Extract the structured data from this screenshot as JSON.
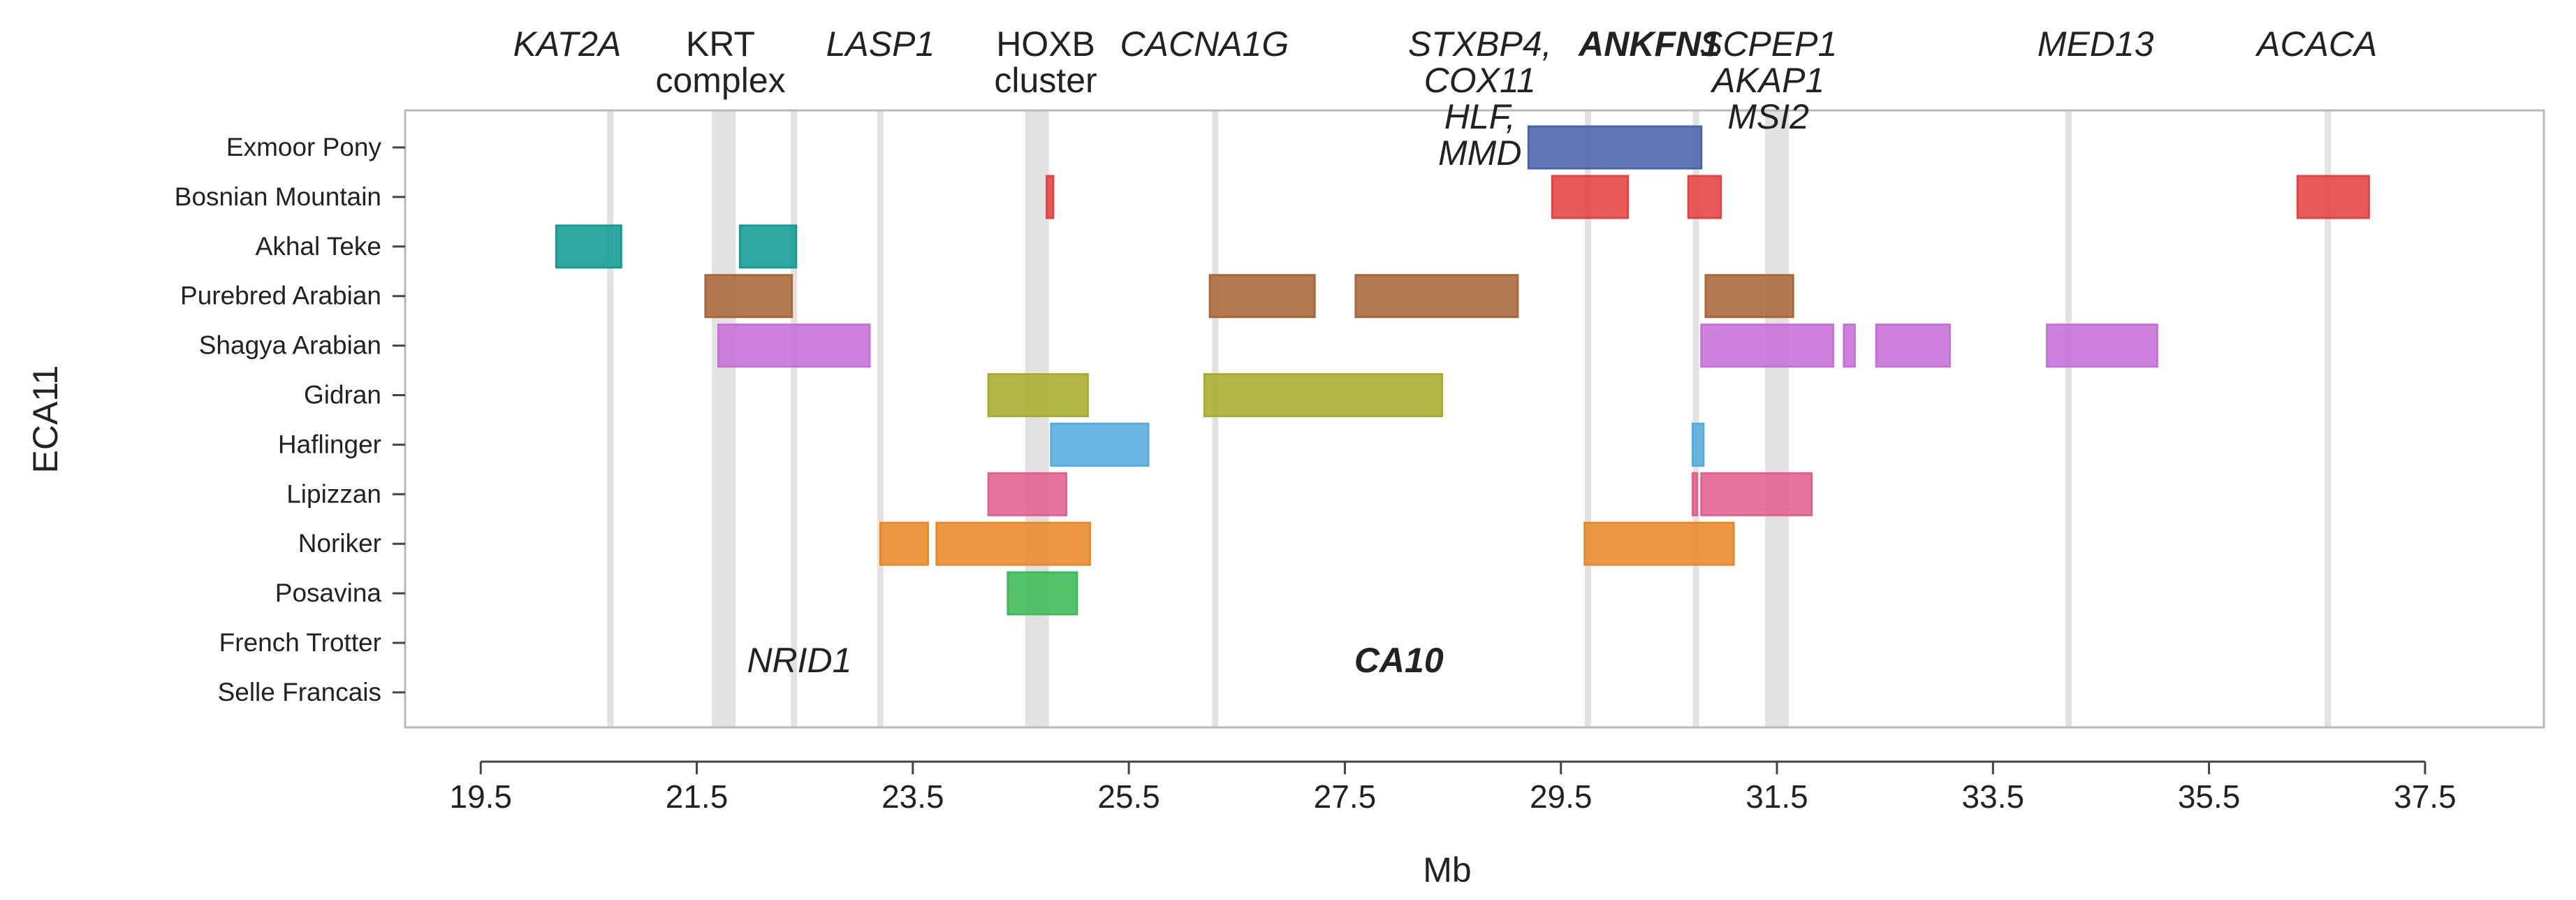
{
  "chart_data": {
    "type": "range-bar",
    "title": "",
    "xlabel": "Mb",
    "ylabel": "ECA11",
    "xlim": [
      18.8,
      38.6
    ],
    "x_ticks": [
      19.5,
      21.5,
      23.5,
      25.5,
      27.5,
      29.5,
      31.5,
      33.5,
      35.5,
      37.5
    ],
    "x_tick_labels": [
      "19.5",
      "21.5",
      "23.5",
      "25.5",
      "27.5",
      "29.5",
      "31.5",
      "33.5",
      "35.5",
      "37.5"
    ],
    "categories": [
      "Exmoor Pony",
      "Bosnian Mountain",
      "Akhal Teke",
      "Purebred Arabian",
      "Shagya Arabian",
      "Gidran",
      "Haflinger",
      "Lipizzan",
      "Noriker",
      "Posavina",
      "French Trotter",
      "Selle Francais"
    ],
    "series": [
      {
        "name": "Exmoor Pony",
        "color": "#4a63ad",
        "segments": [
          [
            29.2,
            30.8
          ]
        ]
      },
      {
        "name": "Bosnian Mountain",
        "color": "#e54343",
        "segments": [
          [
            24.74,
            24.8
          ],
          [
            29.42,
            30.12
          ],
          [
            30.68,
            30.98
          ],
          [
            36.32,
            36.98
          ]
        ]
      },
      {
        "name": "Akhal Teke",
        "color": "#149b95",
        "segments": [
          [
            20.2,
            20.8
          ],
          [
            21.9,
            22.42
          ]
        ]
      },
      {
        "name": "Purebred Arabian",
        "color": "#a9683a",
        "segments": [
          [
            21.58,
            22.38
          ],
          [
            26.25,
            27.22
          ],
          [
            27.6,
            29.1
          ],
          [
            30.84,
            31.65
          ]
        ]
      },
      {
        "name": "Shagya Arabian",
        "color": "#c670d8",
        "segments": [
          [
            21.7,
            23.1
          ],
          [
            30.8,
            32.02
          ],
          [
            32.12,
            32.22
          ],
          [
            32.42,
            33.1
          ],
          [
            34.0,
            35.02
          ]
        ]
      },
      {
        "name": "Gidran",
        "color": "#a8ad2e",
        "segments": [
          [
            24.2,
            25.12
          ],
          [
            26.2,
            28.4
          ]
        ]
      },
      {
        "name": "Haflinger",
        "color": "#55acdf",
        "segments": [
          [
            24.78,
            25.68
          ],
          [
            30.72,
            30.82
          ]
        ]
      },
      {
        "name": "Lipizzan",
        "color": "#e2608d",
        "segments": [
          [
            24.2,
            24.92
          ],
          [
            30.72,
            30.76
          ],
          [
            30.8,
            31.82
          ]
        ]
      },
      {
        "name": "Noriker",
        "color": "#e8892a",
        "segments": [
          [
            23.2,
            23.64
          ],
          [
            23.72,
            25.14
          ],
          [
            29.72,
            31.1
          ]
        ]
      },
      {
        "name": "Posavina",
        "color": "#3cbb58",
        "segments": [
          [
            24.38,
            25.02
          ]
        ]
      },
      {
        "name": "French Trotter",
        "color": "#888888",
        "segments": []
      },
      {
        "name": "Selle Francais",
        "color": "#888888",
        "segments": []
      }
    ],
    "gene_lines": [
      {
        "x": 20.7,
        "wide": false
      },
      {
        "x": 21.75,
        "wide": true
      },
      {
        "x": 22.4,
        "wide": false
      },
      {
        "x": 23.2,
        "wide": false
      },
      {
        "x": 24.65,
        "wide": true
      },
      {
        "x": 26.3,
        "wide": false
      },
      {
        "x": 29.75,
        "wide": false
      },
      {
        "x": 30.75,
        "wide": false
      },
      {
        "x": 31.5,
        "wide": true
      },
      {
        "x": 34.2,
        "wide": false
      },
      {
        "x": 36.6,
        "wide": false
      }
    ],
    "gene_labels": [
      {
        "lines": [
          "KAT2A"
        ],
        "x": 20.3,
        "place": "top",
        "bold": false,
        "italic": true
      },
      {
        "lines": [
          "KRT",
          "complex"
        ],
        "x": 21.72,
        "place": "top",
        "bold": false,
        "italic": false
      },
      {
        "lines": [
          "LASP1"
        ],
        "x": 23.2,
        "place": "top",
        "bold": false,
        "italic": true
      },
      {
        "lines": [
          "HOXB",
          "cluster"
        ],
        "x": 24.73,
        "place": "top",
        "bold": false,
        "italic": false
      },
      {
        "lines": [
          "CACNA1G"
        ],
        "x": 26.2,
        "place": "top",
        "bold": false,
        "italic": true
      },
      {
        "lines": [
          "STXBP4,",
          "COX11",
          "HLF,",
          "MMD"
        ],
        "x": 28.75,
        "place": "top",
        "bold": false,
        "italic": true
      },
      {
        "lines": [
          "ANKFN1"
        ],
        "x": 30.32,
        "place": "top",
        "bold": true,
        "italic": true
      },
      {
        "lines": [
          "SCPEP1",
          "AKAP1",
          "MSI2"
        ],
        "x": 31.42,
        "place": "top",
        "bold": false,
        "italic": true
      },
      {
        "lines": [
          "MED13"
        ],
        "x": 34.45,
        "place": "top",
        "bold": false,
        "italic": true
      },
      {
        "lines": [
          "ACACA"
        ],
        "x": 36.5,
        "place": "top",
        "bold": false,
        "italic": true
      },
      {
        "lines": [
          "NRID1"
        ],
        "x": 22.45,
        "place": "bottom",
        "bold": false,
        "italic": true
      },
      {
        "lines": [
          "CA10"
        ],
        "x": 28.0,
        "place": "bottom",
        "bold": true,
        "italic": true
      }
    ],
    "grid": false
  }
}
